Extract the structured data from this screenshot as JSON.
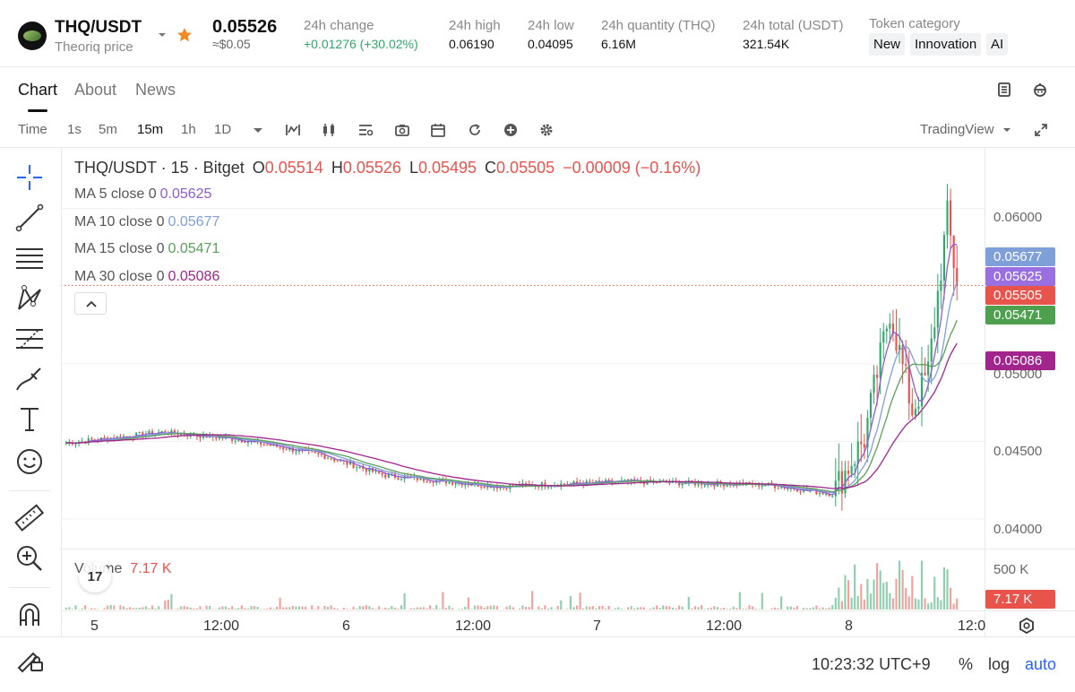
{
  "ticker": {
    "symbol": "THQ/USDT",
    "subtitle": "Theoriq price",
    "price": "0.05526",
    "price_usd": "≈$0.05",
    "stats": [
      {
        "label": "24h change",
        "value": "+0.01276 (+30.02%)"
      },
      {
        "label": "24h high",
        "value": "0.06190"
      },
      {
        "label": "24h low",
        "value": "0.04095"
      },
      {
        "label": "24h quantity (THQ)",
        "value": "6.16M"
      },
      {
        "label": "24h total (USDT)",
        "value": "321.54K"
      }
    ],
    "category_label": "Token category",
    "categories": [
      "New",
      "Innovation",
      "AI"
    ]
  },
  "tabs": [
    "Chart",
    "About",
    "News"
  ],
  "toolbar": {
    "time_label": "Time",
    "intervals": [
      "1s",
      "5m",
      "15m",
      "1h",
      "1D"
    ],
    "active_interval": "15m",
    "provider": "TradingView"
  },
  "legend": {
    "title": "THQ/USDT · 15 · Bitget",
    "o_label": "O",
    "o_value": "0.05514",
    "h_label": "H",
    "h_value": "0.05526",
    "l_label": "L",
    "l_value": "0.05495",
    "c_label": "C",
    "c_value": "0.05505",
    "change": "−0.00009 (−0.16%)",
    "ma": [
      {
        "label": "MA 5 close 0",
        "value": "0.05625"
      },
      {
        "label": "MA 10 close 0",
        "value": "0.05677"
      },
      {
        "label": "MA 15 close 0",
        "value": "0.05471"
      },
      {
        "label": "MA 30 close 0",
        "value": "0.05086"
      }
    ]
  },
  "price_tags": [
    "0.05677",
    "0.05625",
    "0.05505",
    "0.05471",
    "0.05086"
  ],
  "y_axis_labels": [
    "0.06000",
    "0.05000",
    "0.04500",
    "0.04000"
  ],
  "volume": {
    "label": "Volume",
    "value": "7.17 K",
    "axis_label": "500 K",
    "tag": "7.17 K"
  },
  "x_axis_labels": [
    "5",
    "12:00",
    "6",
    "12:00",
    "7",
    "12:00",
    "8",
    "12:0"
  ],
  "status": {
    "time": "10:23:32 UTC+9",
    "percent": "%",
    "log": "log",
    "auto": "auto"
  },
  "tv_logo_text": "17",
  "colors": {
    "up": "#30a86b",
    "down": "#e8534c",
    "ma5": "#8e5bd1",
    "ma10": "#7f9fd9",
    "ma15": "#5aa05a",
    "ma30": "#a2258d",
    "tag_ma10": "#7f9fd9",
    "tag_ma5": "#9a6fe0",
    "tag_last": "#e8534c",
    "tag_ma15": "#4ea04e",
    "tag_ma30": "#a2258d"
  },
  "chart_data": {
    "type": "candlestick",
    "interval": "15m",
    "y_range": [
      0.0385,
      0.0635
    ],
    "y_ticks": [
      0.04,
      0.045,
      0.05,
      0.06
    ],
    "x_labels": [
      "5",
      "12:00",
      "6",
      "12:00",
      "7",
      "12:00",
      "8",
      "12:0"
    ],
    "last_close": 0.05505,
    "price_path_approx": [
      {
        "t": "5 00:00",
        "price": 0.0449
      },
      {
        "t": "5 09:00",
        "price": 0.0456
      },
      {
        "t": "5 12:00",
        "price": 0.0451
      },
      {
        "t": "6 00:00",
        "price": 0.0441
      },
      {
        "t": "6 06:00",
        "price": 0.0428
      },
      {
        "t": "6 12:00",
        "price": 0.0421
      },
      {
        "t": "7 00:00",
        "price": 0.0424
      },
      {
        "t": "7 12:00",
        "price": 0.0422
      },
      {
        "t": "7 20:00",
        "price": 0.0416
      },
      {
        "t": "8 00:00",
        "price": 0.0452
      },
      {
        "t": "8 01:00",
        "price": 0.0535
      },
      {
        "t": "8 04:00",
        "price": 0.047
      },
      {
        "t": "8 06:00",
        "price": 0.0495
      },
      {
        "t": "8 09:00",
        "price": 0.0595
      },
      {
        "t": "8 10:15",
        "price": 0.05505
      }
    ],
    "moving_averages": [
      {
        "name": "MA 5 close 0",
        "last": 0.05625
      },
      {
        "name": "MA 10 close 0",
        "last": 0.05677
      },
      {
        "name": "MA 15 close 0",
        "last": 0.05471
      },
      {
        "name": "MA 30 close 0",
        "last": 0.05086
      }
    ],
    "volume_last": "7.17 K"
  }
}
